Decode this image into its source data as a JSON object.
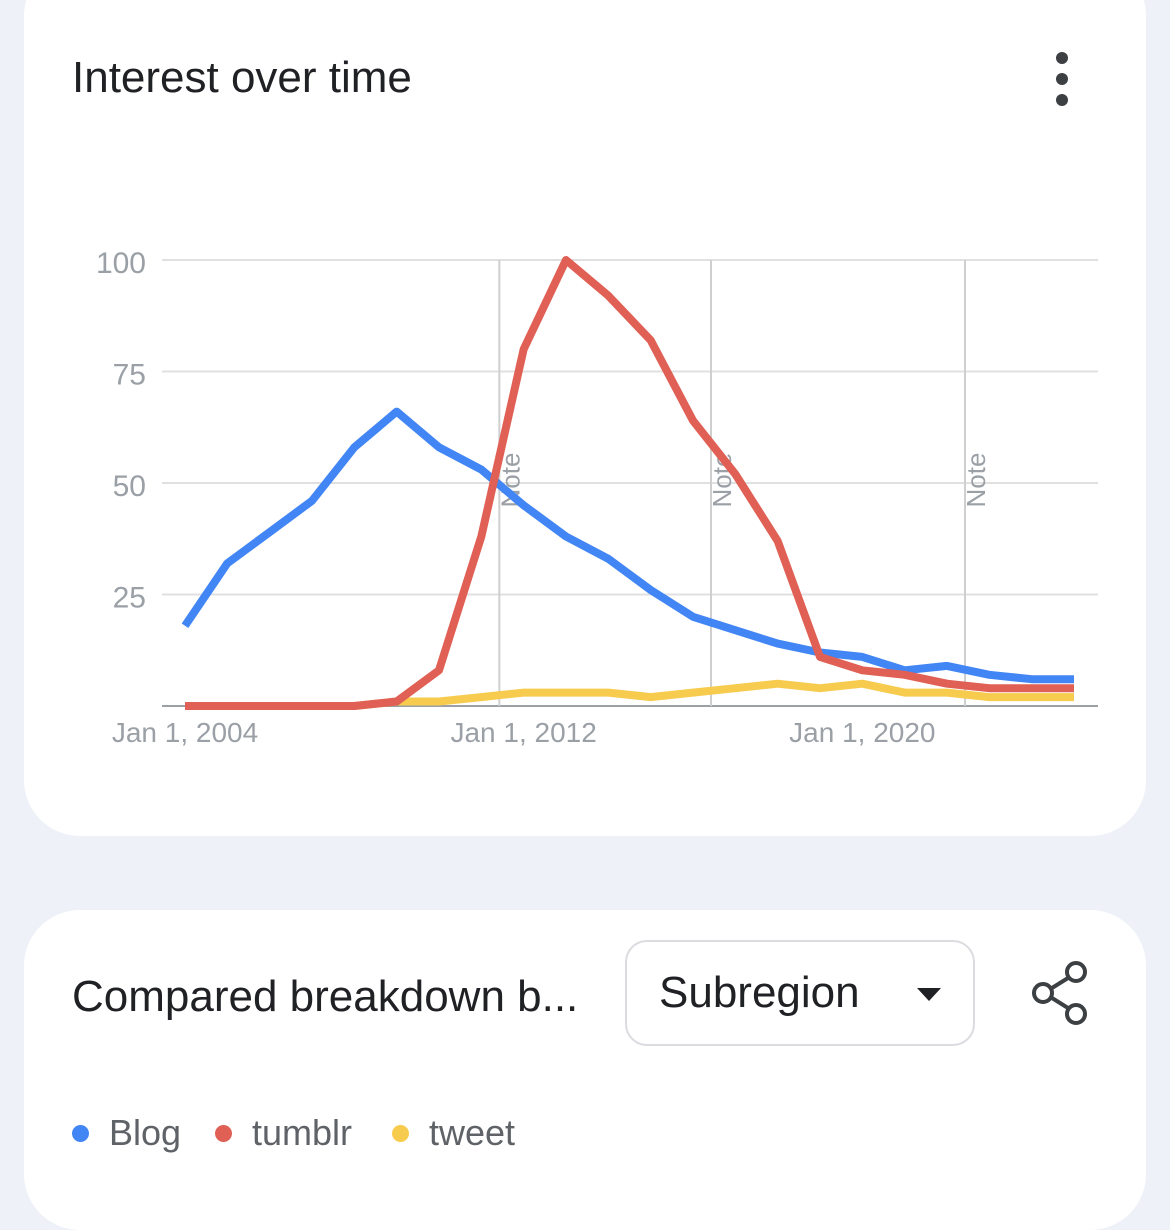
{
  "interest_card": {
    "title": "Interest over time",
    "menu_icon": "more-vert-icon"
  },
  "chart_data": {
    "type": "line",
    "x_unit": "year",
    "x": [
      2004,
      2005,
      2006,
      2007,
      2008,
      2009,
      2010,
      2011,
      2012,
      2013,
      2014,
      2015,
      2016,
      2017,
      2018,
      2019,
      2020,
      2021,
      2022,
      2023,
      2024,
      2025
    ],
    "series": [
      {
        "name": "Blog",
        "color": "#4285f4",
        "values": [
          18,
          32,
          39,
          46,
          58,
          66,
          58,
          53,
          45,
          38,
          33,
          26,
          20,
          17,
          14,
          12,
          11,
          8,
          9,
          7,
          6,
          6
        ]
      },
      {
        "name": "tumblr",
        "color": "#e06055",
        "values": [
          0,
          0,
          0,
          0,
          0,
          1,
          8,
          38,
          80,
          100,
          92,
          82,
          64,
          52,
          37,
          11,
          8,
          7,
          5,
          4,
          4,
          4
        ]
      },
      {
        "name": "tweet",
        "color": "#f7cb4d",
        "values": [
          0,
          0,
          0,
          0,
          0,
          1,
          1,
          2,
          3,
          3,
          3,
          2,
          3,
          4,
          5,
          4,
          5,
          3,
          3,
          2,
          2,
          2
        ]
      }
    ],
    "ylim": [
      0,
      100
    ],
    "y_ticks": [
      {
        "value": 100,
        "label": "100"
      },
      {
        "value": 75,
        "label": "75"
      },
      {
        "value": 50,
        "label": "50"
      },
      {
        "value": 25,
        "label": "25"
      }
    ],
    "x_ticks": [
      {
        "value": 2004,
        "label": "Jan 1, 2004"
      },
      {
        "value": 2012,
        "label": "Jan 1, 2012"
      },
      {
        "value": 2020,
        "label": "Jan 1, 2020"
      }
    ],
    "annotations": [
      {
        "x": 2011,
        "label": "Note"
      },
      {
        "x": 2016,
        "label": "Note"
      },
      {
        "x": 2022,
        "label": "Note"
      }
    ],
    "grid": true,
    "legend": "bottom"
  },
  "breakdown_card": {
    "title": "Compared breakdown b...",
    "dropdown": {
      "selected": "Subregion",
      "icon": "arrow-drop-down-icon"
    },
    "share_icon": "share-icon",
    "legend": [
      {
        "label": "Blog",
        "color": "#4285f4"
      },
      {
        "label": "tumblr",
        "color": "#e06055"
      },
      {
        "label": "tweet",
        "color": "#f7cb4d"
      }
    ]
  }
}
